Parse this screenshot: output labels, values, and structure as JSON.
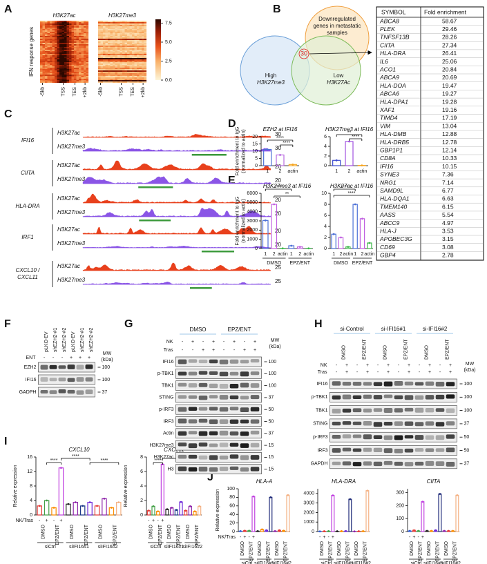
{
  "A": {
    "letter": "A",
    "titles": [
      "H3K27ac",
      "H3K27me3"
    ],
    "ylabel": "IFN response genes",
    "xticks": [
      "-5kb",
      "TSS",
      "TES",
      "+2kb"
    ],
    "colorbar_lim": [
      0,
      8
    ],
    "colorbar_ticks": [
      {
        "value": 0,
        "label": "0.0"
      },
      2.5,
      {
        "value": 5,
        "label": "5.0"
      },
      7.5
    ]
  },
  "B": {
    "letter": "B",
    "venn": {
      "top": [
        "Downregulated",
        "genes in metastatic",
        "samples"
      ],
      "left": [
        "High",
        "H3K27me3"
      ],
      "right": [
        "Low",
        "H3K27Ac"
      ],
      "overlap": "30"
    },
    "table": {
      "header": [
        "SYMBOL",
        "Fold enrichment"
      ],
      "rows": [
        [
          "ABCA8",
          "58.67"
        ],
        [
          "PLEK",
          "29.46"
        ],
        [
          "TNFSF13B",
          "28.26"
        ],
        [
          "CIITA",
          "27.34"
        ],
        [
          "HLA-DRA",
          "26.41"
        ],
        [
          "IL6",
          "25.06"
        ],
        [
          "ACO1",
          "20.84"
        ],
        [
          "ABCA9",
          "20.69"
        ],
        [
          "HLA-DOA",
          "19.47"
        ],
        [
          "ABCA6",
          "19.27"
        ],
        [
          "HLA-DPA1",
          "19.28"
        ],
        [
          "XAF1",
          "19.16"
        ],
        [
          "TIMD4",
          "17.19"
        ],
        [
          "VIM",
          "13.04"
        ],
        [
          "HLA-DMB",
          "12.88"
        ],
        [
          "HLA-DRB5",
          "12.78"
        ],
        [
          "GBP1P1",
          "12.14"
        ],
        [
          "CD8A",
          "10.33"
        ],
        [
          "IFI16",
          "10.15"
        ],
        [
          "SYNE3",
          "7.36"
        ],
        [
          "NRG1",
          "7.14"
        ],
        [
          "SAMD9L",
          "6.77"
        ],
        [
          "HLA-DQA1",
          "6.63"
        ],
        [
          "TMEM140",
          "6.15"
        ],
        [
          "AASS",
          "5.54"
        ],
        [
          "ABCC9",
          "4.97"
        ],
        [
          "HLA-J",
          "3.53"
        ],
        [
          "APOBEC3G",
          "3.15"
        ],
        [
          "CD69",
          "3.08"
        ],
        [
          "GBP4",
          "2.78"
        ]
      ]
    }
  },
  "C": {
    "letter": "C",
    "marks": [
      "H3K27ac",
      "H3K27me3"
    ],
    "genes": [
      {
        "name": [
          "IFI16"
        ],
        "scales": [
          30,
          30
        ]
      },
      {
        "name": [
          "CIITA"
        ],
        "scales": [
          20,
          20
        ]
      },
      {
        "name": [
          "HLA-DRA"
        ],
        "scales": [
          20,
          20
        ]
      },
      {
        "name": [
          "IRF1"
        ],
        "scales": [
          20,
          20
        ]
      },
      {
        "name": [
          "CXCL10 /",
          "CXCL11"
        ],
        "scales": [
          25,
          25
        ]
      }
    ]
  },
  "D": {
    "letter": "D",
    "charts": [
      {
        "type": "bar",
        "title": "EZH2 at IFI16",
        "ylabel": [
          "Fold enrichment to IgG",
          "(normalized to actin)"
        ],
        "categories": [
          "1",
          "2",
          "actin"
        ],
        "values": [
          11.2,
          7.4,
          0.8
        ],
        "colors": [
          "#4a6fd6",
          "#b86ae0",
          "#f5a623"
        ],
        "ylim": [
          0,
          20
        ],
        "yticks": [
          0,
          5,
          10,
          15,
          20
        ],
        "significance": [
          "****",
          "****"
        ]
      },
      {
        "type": "bar",
        "title": "H3K27me3 at IFI16",
        "categories": [
          "1",
          "2",
          "actin"
        ],
        "values": [
          1.1,
          5,
          0.05
        ],
        "colors": [
          "#3a49d0",
          "#a050e0",
          "#f5a623"
        ],
        "ylim": [
          0,
          6
        ],
        "yticks": [
          0,
          2,
          4,
          6
        ],
        "significance": [
          "**",
          "****"
        ]
      }
    ]
  },
  "E": {
    "letter": "E",
    "charts": [
      {
        "type": "bar",
        "title": "H3K27me3 at IFI16",
        "ylabel": [
          "Fold enrichment to IgG",
          "(normalized to actin)"
        ],
        "categories": [
          "1",
          "2",
          "actin",
          "1",
          "2",
          "actin"
        ],
        "groups": [
          "DMSO",
          "EPZ/ENT"
        ],
        "values": [
          3050,
          4800,
          20,
          300,
          180,
          20
        ],
        "colors": [
          "#4a6fd6",
          "#c060e0",
          "#3db84a",
          "#4a6fd6",
          "#c060e0",
          "#3db84a"
        ],
        "ylim": [
          0,
          6000
        ],
        "yticks": [
          0,
          1000,
          2000,
          3000,
          4000,
          5000,
          6000
        ],
        "significance": [
          "****",
          "**"
        ]
      },
      {
        "type": "bar",
        "title": "H3K27ac at IFI16",
        "categories": [
          "1",
          "2",
          "actin",
          "1",
          "2",
          "actin"
        ],
        "groups": [
          "DMSO",
          "EPZ/ENT"
        ],
        "values": [
          2.6,
          2,
          0.3,
          8,
          5.4,
          1
        ],
        "colors": [
          "#4a6fd6",
          "#c060e0",
          "#3db84a",
          "#4a6fd6",
          "#c060e0",
          "#3db84a"
        ],
        "ylim": [
          0,
          10
        ],
        "yticks": [
          0,
          2,
          4,
          6,
          8,
          10
        ],
        "significance": [
          "****",
          "****"
        ]
      }
    ]
  },
  "F": {
    "letter": "F",
    "lanes": [
      "pLKO-EV",
      "shEZH2-#1",
      "shEZH2-#2",
      "pLKO-EV",
      "shEZH2-#1",
      "shEZH2-#2"
    ],
    "rows": [
      {
        "name": "ENT",
        "signs": [
          "-",
          "-",
          "-",
          "+",
          "+",
          "+"
        ]
      }
    ],
    "bands": [
      "EZH2",
      "IFI16",
      "GADPH"
    ],
    "mw_title": "MW",
    "mw_unit": "(kDa)",
    "mw": [
      100,
      100,
      37
    ]
  },
  "G": {
    "letter": "G",
    "groups": [
      "DMSO",
      "EPZ/ENT"
    ],
    "rows": [
      {
        "name": "NK",
        "signs": [
          "-",
          "+",
          "-",
          "+",
          "-",
          "+",
          "-",
          "+"
        ]
      },
      {
        "name": "Tras",
        "signs": [
          "-",
          "-",
          "+",
          "+",
          "-",
          "-",
          "+",
          "+"
        ]
      }
    ],
    "bands": [
      "IFI16",
      "p-TBK1",
      "TBK1",
      "STING",
      "p-IRF3",
      "IRF3",
      "Actin",
      "H3K27me3",
      "H3K27ac",
      "H3"
    ],
    "mw_title": "MW",
    "mw_unit": "(kDa)",
    "mw": [
      100,
      100,
      100,
      37,
      50,
      50,
      37,
      15,
      15,
      15
    ]
  },
  "H": {
    "letter": "H",
    "groups": [
      "si-Control",
      "si-IFI16#1",
      "si-IFI16#2"
    ],
    "lanes": [
      "DMSO",
      "EPZ/ENT",
      "DMSO",
      "EPZ/ENT",
      "DMSO",
      "EPZ/ENT"
    ],
    "rows": [
      {
        "name": "NK",
        "signs": [
          "-",
          "+",
          "-",
          "+",
          "-",
          "+",
          "-",
          "+",
          "-",
          "+",
          "-",
          "+"
        ]
      },
      {
        "name": "Tras",
        "signs": [
          "-",
          "+",
          "-",
          "+",
          "-",
          "+",
          "-",
          "+",
          "-",
          "+",
          "-",
          "+"
        ]
      }
    ],
    "bands": [
      "IFI16",
      "p-TBK1",
      "TBK1",
      "STING",
      "p-IRF3",
      "IRF3",
      "GAPDH"
    ],
    "mw_title": "MW",
    "mw_unit": "(kDa)",
    "mw": [
      100,
      100,
      100,
      37,
      50,
      50,
      37
    ]
  },
  "I": {
    "letter": "I",
    "charts": [
      {
        "type": "bar",
        "title": "CXCL10",
        "ylabel": [
          "Relative expression"
        ],
        "x_label": "NK/Tras",
        "categories": [
          "-",
          "+",
          "-",
          "+",
          null,
          null,
          null,
          null,
          null,
          null,
          null,
          null
        ],
        "groups": [
          "DMSO",
          "EPZ/ENT",
          "DMSO",
          "EPZ/ENT",
          "DMSO",
          "EPZ/ENT"
        ],
        "supergroups": [
          "siCtrl",
          "siIFI16#1",
          "siIFI16#2"
        ],
        "values": [
          2.5,
          4,
          2,
          13,
          3,
          3.5,
          2.5,
          3.5,
          2.5,
          4.5,
          2,
          3.5
        ],
        "colors": [
          "#e53935",
          "#43a047",
          "#fb8c00",
          "#c040e0",
          "#222222",
          "#8e24aa",
          "#1e3a8a",
          "#6d28d9",
          "#e53935",
          "#8e24aa",
          "#fb8c00",
          "#f4b183"
        ],
        "ylim": [
          0,
          16
        ],
        "yticks": [
          0,
          4,
          8,
          12,
          16
        ],
        "significance": [
          "****",
          "****",
          "****"
        ]
      },
      {
        "type": "bar",
        "title": "CXCL11",
        "ylabel": [
          "Relative expression"
        ],
        "categories": [
          "-",
          "+",
          "-",
          "+",
          null,
          null,
          null,
          null,
          null,
          null,
          null,
          null
        ],
        "groups": [
          "DMSO",
          "EPZ/ENT",
          "DMSO",
          "EPZ/ENT",
          "DMSO",
          "EPZ/ENT"
        ],
        "supergroups": [
          "siCtrl",
          "siIFI16#1",
          "siIFI16#2"
        ],
        "values": [
          0.6,
          1.2,
          0.5,
          7,
          0.8,
          1,
          0.7,
          1.8,
          0.6,
          1.2,
          0.5,
          1.2
        ],
        "colors": [
          "#e53935",
          "#43a047",
          "#fb8c00",
          "#c040e0",
          "#222222",
          "#8e24aa",
          "#1e3a8a",
          "#6d28d9",
          "#e53935",
          "#8e24aa",
          "#fb8c00",
          "#f4b183"
        ],
        "ylim": [
          0,
          8
        ],
        "yticks": [
          0,
          2,
          4,
          6,
          8
        ],
        "significance": [
          "****",
          "****"
        ]
      }
    ]
  },
  "J": {
    "letter": "J",
    "charts": [
      {
        "type": "bar",
        "title": "HLA-A",
        "ylabel": [
          "Relative expression"
        ],
        "x_label": "NK/Tras",
        "categories": [
          "-",
          "+",
          "-",
          "+",
          null,
          null,
          null,
          null,
          null,
          null,
          null,
          null
        ],
        "groups": [
          "DMSO",
          "EPZ/ENT",
          "DMSO",
          "EPZ/ENT",
          "DMSO",
          "EPZ/ENT"
        ],
        "supergroups": [
          "siCtrl",
          "siIFI16#1",
          "siIFI16#2"
        ],
        "values": [
          1,
          2,
          2,
          82,
          1,
          5,
          3,
          80,
          1,
          3,
          2,
          85
        ],
        "colors": [
          "#2e5bd6",
          "#e53935",
          "#43a047",
          "#c040e0",
          "#222222",
          "#fb8c00",
          "#6d28d9",
          "#1e2a78",
          "#8e24aa",
          "#e53935",
          "#fb8c00",
          "#f4b183"
        ],
        "ylim": [
          0,
          100
        ],
        "yticks": [
          0,
          20,
          40,
          60,
          80,
          100
        ]
      },
      {
        "type": "bar",
        "title": "HLA-DRA",
        "categories": [
          "-",
          "+",
          "-",
          "+",
          null,
          null,
          null,
          null,
          null,
          null,
          null,
          null
        ],
        "groups": [
          "DMSO",
          "EPZ/ENT",
          "DMSO",
          "EPZ/ENT",
          "DMSO",
          "EPZ/ENT"
        ],
        "supergroups": [
          "siCtrl",
          "siIFI16#1",
          "siIFI16#2"
        ],
        "values": [
          20,
          30,
          40,
          3800,
          30,
          40,
          50,
          3400,
          20,
          30,
          40,
          4300
        ],
        "colors": [
          "#2e5bd6",
          "#e53935",
          "#43a047",
          "#c040e0",
          "#222222",
          "#fb8c00",
          "#6d28d9",
          "#1e2a78",
          "#8e24aa",
          "#e53935",
          "#fb8c00",
          "#f4b183"
        ],
        "ylim": [
          0,
          4500
        ],
        "yticks": [
          0,
          1000,
          2000,
          3000,
          4000
        ]
      },
      {
        "type": "bar",
        "title": "CIITA",
        "categories": [
          "-",
          "+",
          "-",
          "+",
          null,
          null,
          null,
          null,
          null,
          null,
          null,
          null
        ],
        "groups": [
          "DMSO",
          "EPZ/ENT",
          "DMSO",
          "EPZ/ENT",
          "DMSO",
          "EPZ/ENT"
        ],
        "supergroups": [
          "siCtrl",
          "siIFI16#1",
          "siIFI16#2"
        ],
        "values": [
          5,
          10,
          5,
          230,
          5,
          5,
          10,
          290,
          5,
          5,
          5,
          280
        ],
        "colors": [
          "#2e5bd6",
          "#e53935",
          "#43a047",
          "#c040e0",
          "#222222",
          "#fb8c00",
          "#6d28d9",
          "#1e2a78",
          "#8e24aa",
          "#e53935",
          "#fb8c00",
          "#f4b183"
        ],
        "ylim": [
          0,
          330
        ],
        "yticks": [
          0,
          100,
          200,
          300
        ]
      }
    ]
  }
}
